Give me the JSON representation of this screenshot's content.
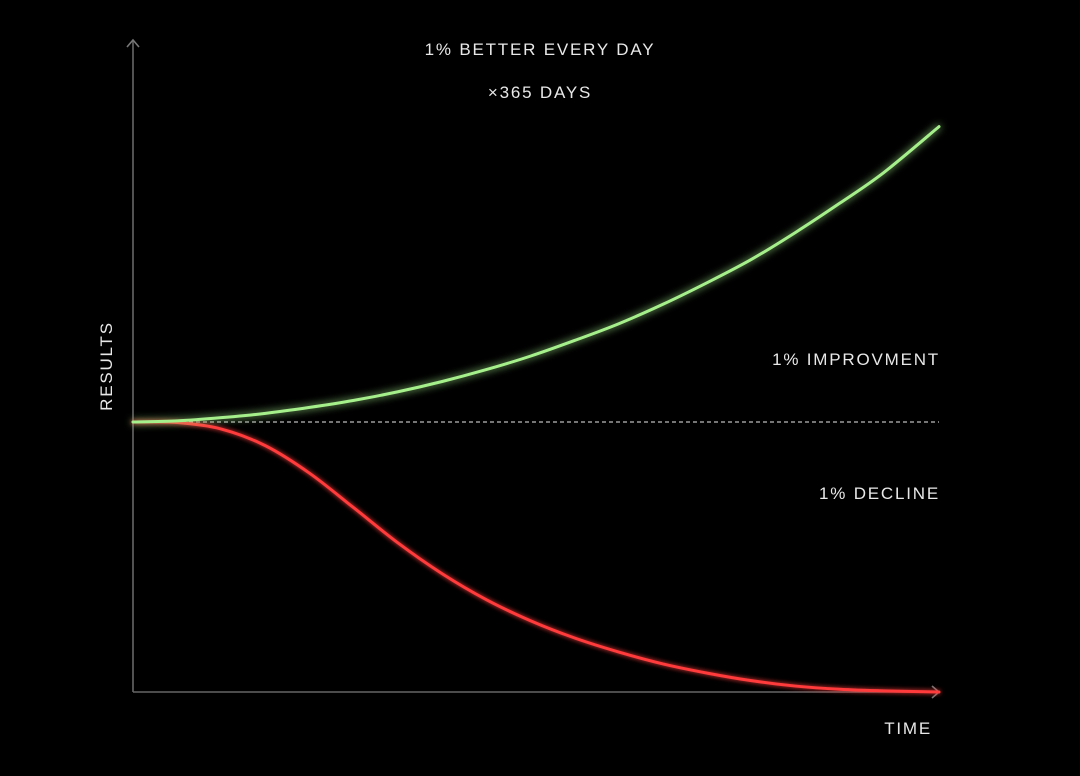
{
  "chart_data": {
    "type": "line",
    "title": "1% BETTER EVERY DAY",
    "subtitle": "×365 DAYS",
    "xlabel": "TIME",
    "ylabel": "RESULTS",
    "xlim": [
      0,
      365
    ],
    "ylim": [
      0,
      1
    ],
    "grid": false,
    "baseline": 0.5,
    "series": [
      {
        "name": "1% IMPROVMENT",
        "color": "#a6f08c",
        "x": [
          0,
          20,
          40,
          60,
          80,
          100,
          120,
          140,
          160,
          180,
          200,
          220,
          240,
          260,
          280,
          300,
          320,
          340,
          365
        ],
        "values": [
          0.5,
          0.502,
          0.508,
          0.516,
          0.527,
          0.54,
          0.556,
          0.575,
          0.597,
          0.622,
          0.651,
          0.682,
          0.718,
          0.758,
          0.801,
          0.851,
          0.905,
          0.962,
          1.047
        ]
      },
      {
        "name": "1% DECLINE",
        "color": "#ff3a3a",
        "x": [
          0,
          20,
          40,
          60,
          80,
          100,
          120,
          140,
          160,
          180,
          200,
          220,
          240,
          260,
          280,
          300,
          320,
          340,
          365
        ],
        "values": [
          0.5,
          0.499,
          0.487,
          0.456,
          0.405,
          0.341,
          0.276,
          0.219,
          0.171,
          0.132,
          0.1,
          0.074,
          0.052,
          0.035,
          0.021,
          0.011,
          0.005,
          0.002,
          0.0
        ]
      }
    ]
  }
}
